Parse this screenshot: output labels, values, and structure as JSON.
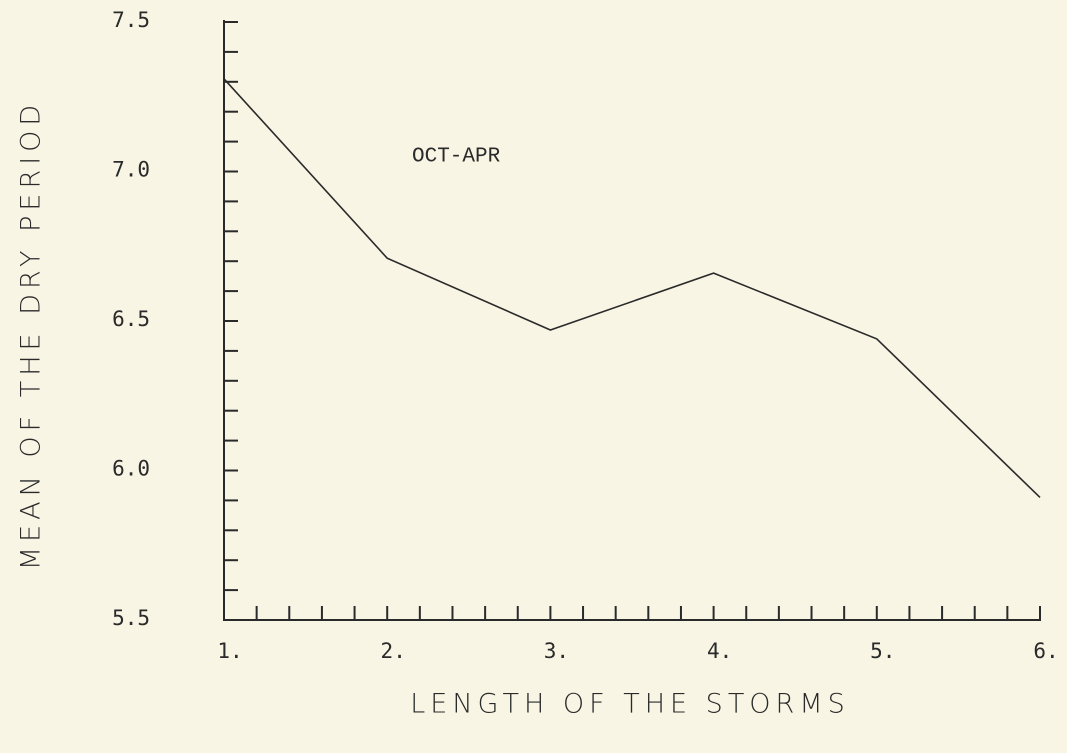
{
  "chart_data": {
    "type": "line",
    "annotation": "OCT-APR",
    "xlabel": "LENGTH OF THE STORMS",
    "ylabel": "MEAN OF THE DRY PERIOD",
    "x": [
      1,
      2,
      3,
      4,
      5,
      6
    ],
    "series": [
      {
        "color": "#2a2a2a",
        "values": [
          7.31,
          6.71,
          6.47,
          6.66,
          6.44,
          5.91
        ]
      }
    ],
    "xlim": [
      1,
      6
    ],
    "ylim": [
      5.5,
      7.5
    ],
    "xticks": [
      {
        "value": 1,
        "label": "1."
      },
      {
        "value": 2,
        "label": "2."
      },
      {
        "value": 3,
        "label": "3."
      },
      {
        "value": 4,
        "label": "4."
      },
      {
        "value": 5,
        "label": "5."
      },
      {
        "value": 6,
        "label": "6."
      }
    ],
    "yticks": [
      7.5,
      {
        "value": 7,
        "label": "7.0"
      },
      6.5,
      {
        "value": 6,
        "label": "6.0"
      },
      5.5
    ],
    "minor_xticks": [
      1.2,
      1.4,
      1.6,
      1.8,
      2.2,
      2.4,
      2.6,
      2.8,
      3.2,
      3.4,
      3.6,
      3.8,
      4.2,
      4.4,
      4.6,
      4.8,
      5.2,
      5.4,
      5.6,
      5.8
    ],
    "minor_yticks": [
      5.6,
      5.7,
      5.8,
      5.9,
      6.1,
      6.2,
      6.3,
      6.4,
      6.6,
      6.7,
      6.8,
      6.9,
      7.1,
      7.2,
      7.3,
      7.4
    ]
  }
}
